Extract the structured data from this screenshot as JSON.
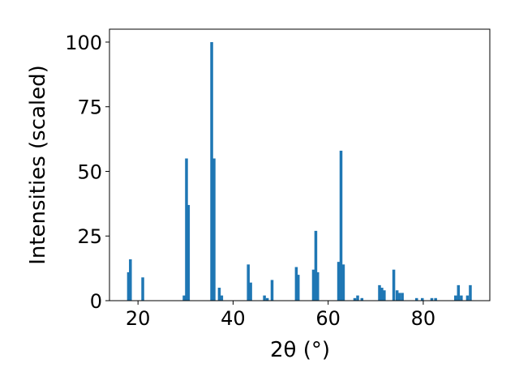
{
  "chart_data": {
    "type": "bar",
    "xlabel": "2θ (°)",
    "ylabel": "Intensities (scaled)",
    "xlim": [
      14,
      94
    ],
    "ylim": [
      0,
      105
    ],
    "xticks": [
      20,
      40,
      60,
      80
    ],
    "yticks": [
      0,
      25,
      50,
      75,
      100
    ],
    "bar_width": 0.6,
    "color": "#1f77b4",
    "grid": false,
    "series": [
      {
        "x": [
          18.0,
          18.4,
          21.0,
          29.7,
          30.2,
          30.6,
          35.5,
          36.0,
          37.1,
          37.6,
          43.2,
          43.7,
          46.6,
          47.2,
          48.2,
          53.3,
          53.7,
          56.9,
          57.4,
          57.8,
          62.2,
          62.7,
          63.2,
          65.6,
          66.2,
          67.1,
          70.8,
          71.3,
          71.8,
          73.8,
          74.5,
          75.0,
          75.6,
          78.6,
          79.8,
          81.8,
          82.6,
          86.8,
          87.4,
          88.0,
          89.3,
          89.9
        ],
        "values": [
          11,
          16,
          9,
          2,
          55,
          37,
          100,
          55,
          5,
          2,
          14,
          7,
          2,
          1,
          8,
          13,
          10,
          12,
          27,
          11,
          15,
          58,
          14,
          1,
          2,
          1,
          6,
          5,
          4,
          12,
          4,
          3,
          3,
          1,
          1,
          1,
          1,
          2,
          6,
          2,
          2,
          6
        ]
      }
    ]
  }
}
